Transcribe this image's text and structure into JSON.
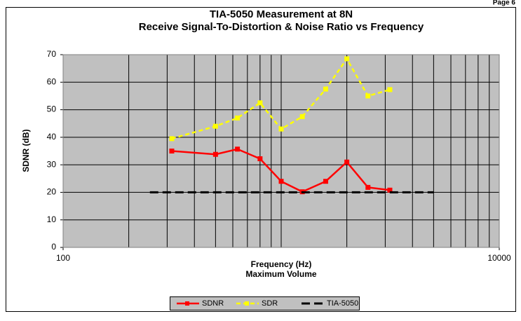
{
  "page_label": "Page 6",
  "chart_data": {
    "type": "line",
    "title": "TIA-5050 Measurement at 8N",
    "subtitle": "Receive Signal-To-Distortion & Noise Ratio vs Frequency",
    "xlabel": "Frequency (Hz)",
    "xlabel2": "Maximum Volume",
    "ylabel": "SDNR (dB)",
    "xscale": "log",
    "xlim": [
      100,
      10000
    ],
    "xticks": [
      100,
      10000
    ],
    "ylim": [
      0,
      70
    ],
    "yticks": [
      0,
      10,
      20,
      30,
      40,
      50,
      60,
      70
    ],
    "grid": true,
    "legend": "bottom",
    "series": [
      {
        "name": "SDNR",
        "color": "#ff0000",
        "dash": false,
        "marker": true,
        "x": [
          315,
          500,
          630,
          800,
          1000,
          1250,
          1600,
          2000,
          2500,
          3150
        ],
        "values": [
          35,
          33.8,
          35.7,
          32.2,
          24,
          20.2,
          24,
          31,
          21.8,
          20.8
        ]
      },
      {
        "name": "SDR",
        "color": "#ffff00",
        "dash": true,
        "marker": true,
        "x": [
          315,
          500,
          630,
          800,
          1000,
          1250,
          1600,
          2000,
          2500,
          3150
        ],
        "values": [
          39.5,
          44,
          47,
          52.5,
          43,
          47.5,
          57.5,
          68.5,
          55,
          57.3
        ]
      },
      {
        "name": "TIA-5050",
        "color": "#000000",
        "dash": true,
        "marker": false,
        "x": [
          250,
          5000
        ],
        "values": [
          20,
          20
        ]
      }
    ]
  }
}
